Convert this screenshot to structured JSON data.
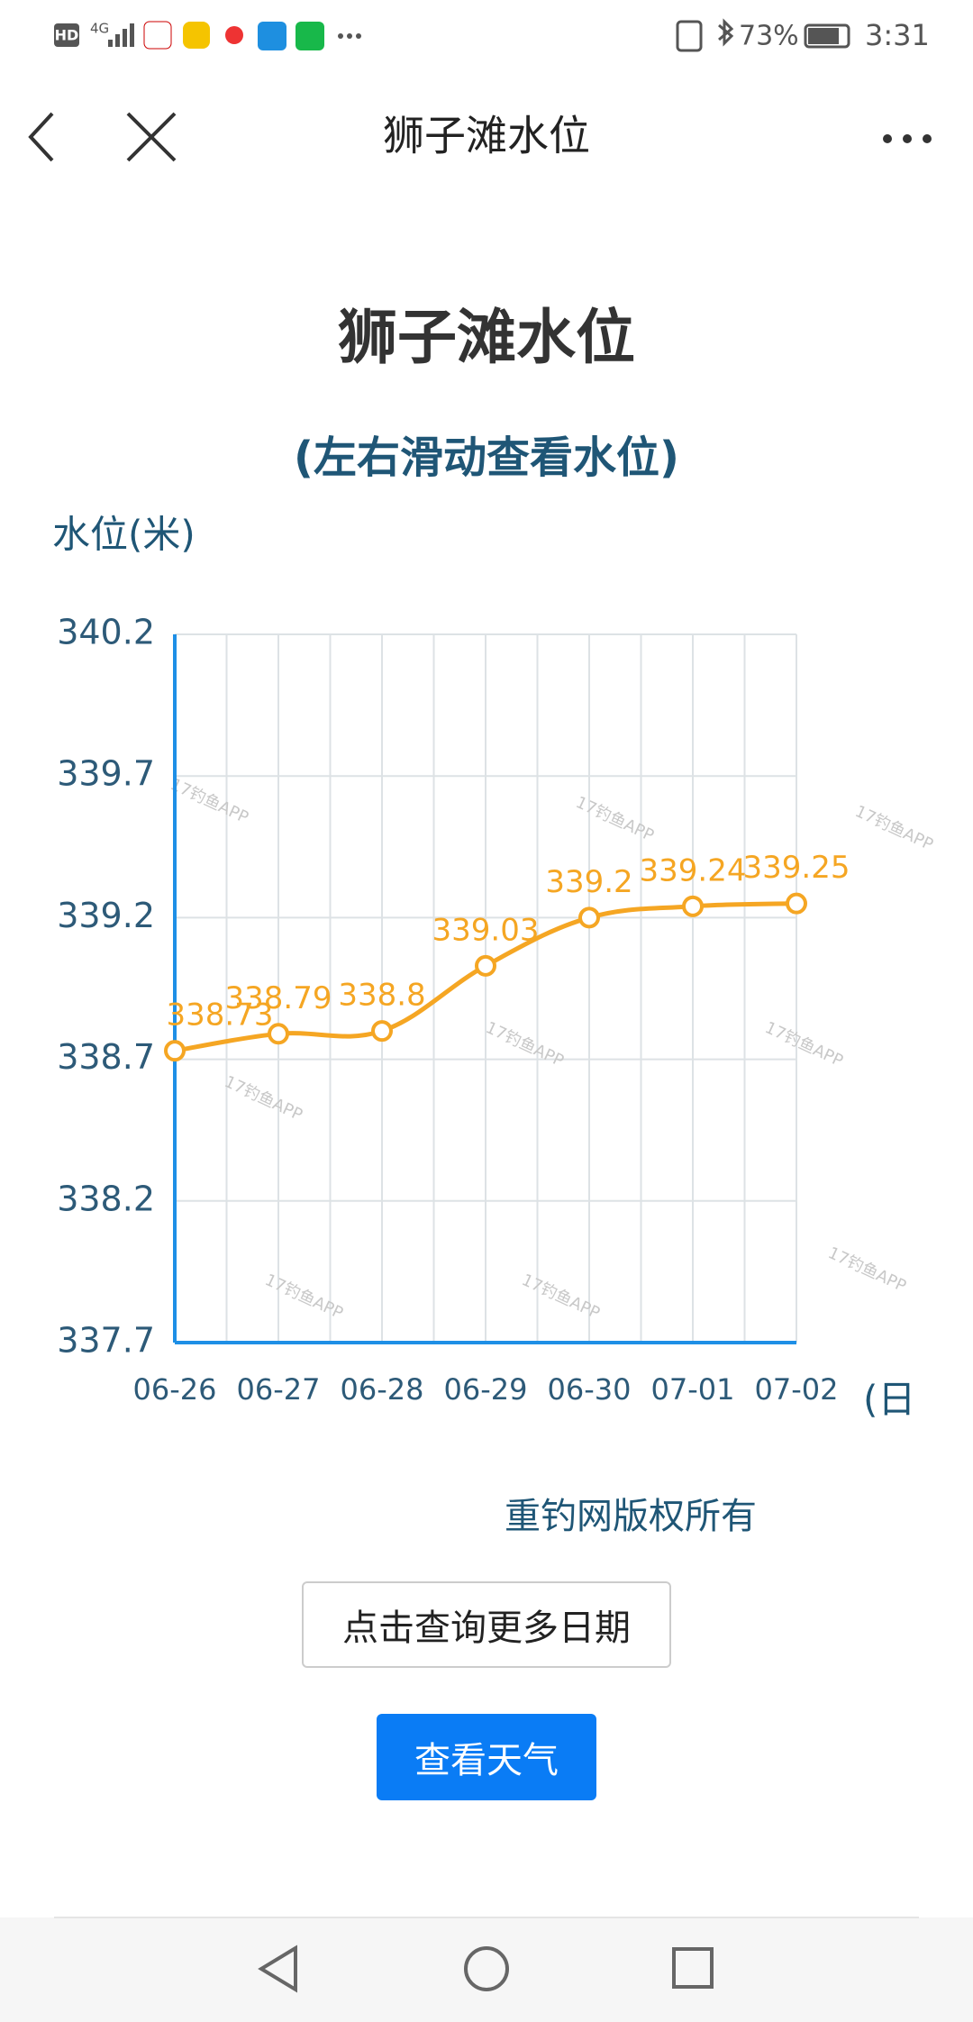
{
  "status_bar": {
    "hd": "HD",
    "network": "4G",
    "battery": "73%",
    "time": "3:31"
  },
  "nav": {
    "title": "狮子滩水位"
  },
  "chart_data": {
    "type": "line",
    "title": "狮子滩水位",
    "subtitle": "(左右滑动查看水位)",
    "y_label": "水位(米)",
    "x_unit": "(日",
    "categories": [
      "06-26",
      "06-27",
      "06-28",
      "06-29",
      "06-30",
      "07-01",
      "07-02"
    ],
    "values": [
      338.73,
      338.79,
      338.8,
      339.03,
      339.2,
      339.24,
      339.25
    ],
    "color": "#f5a623",
    "ylim": [
      337.7,
      340.2
    ],
    "yticks": [
      337.7,
      338.2,
      338.7,
      339.2,
      339.7,
      340.2
    ],
    "grid": true,
    "watermark": "17钓鱼APP"
  },
  "footer": {
    "copyright": "重钓网版权所有",
    "more_button": "点击查询更多日期",
    "weather_button": "查看天气"
  }
}
